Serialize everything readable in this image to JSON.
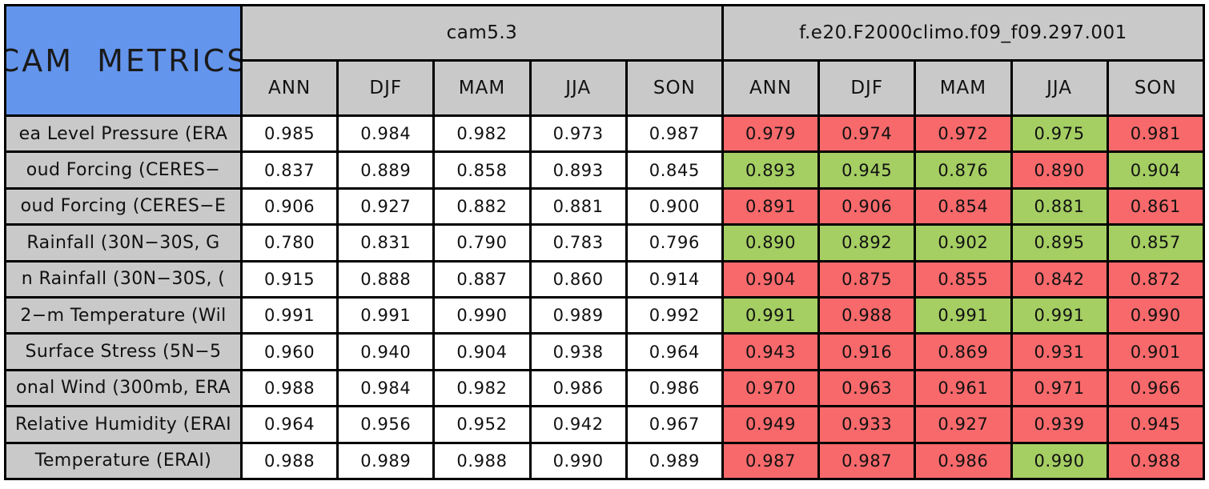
{
  "chart_data": {
    "type": "table",
    "title": "CAM METRICS",
    "header": {
      "model_1": "cam5.3",
      "model_2": "f.e20.F2000climo.f09_f09.297.001",
      "seasons": [
        "ANN",
        "DJF",
        "MAM",
        "JJA",
        "SON"
      ]
    },
    "rows": [
      {
        "label": "ea Level Pressure (ERA",
        "model_1_values": [
          "0.985",
          "0.984",
          "0.982",
          "0.973",
          "0.987"
        ],
        "model_2_values": [
          "0.979",
          "0.974",
          "0.972",
          "0.975",
          "0.981"
        ],
        "model_2_status": [
          "worse",
          "worse",
          "worse",
          "better",
          "worse"
        ]
      },
      {
        "label": "oud Forcing (CERES−",
        "model_1_values": [
          "0.837",
          "0.889",
          "0.858",
          "0.893",
          "0.845"
        ],
        "model_2_values": [
          "0.893",
          "0.945",
          "0.876",
          "0.890",
          "0.904"
        ],
        "model_2_status": [
          "better",
          "better",
          "better",
          "worse",
          "better"
        ]
      },
      {
        "label": "oud Forcing (CERES−E",
        "model_1_values": [
          "0.906",
          "0.927",
          "0.882",
          "0.881",
          "0.900"
        ],
        "model_2_values": [
          "0.891",
          "0.906",
          "0.854",
          "0.881",
          "0.861"
        ],
        "model_2_status": [
          "worse",
          "worse",
          "worse",
          "better",
          "worse"
        ]
      },
      {
        "label": "Rainfall (30N−30S, G",
        "model_1_values": [
          "0.780",
          "0.831",
          "0.790",
          "0.783",
          "0.796"
        ],
        "model_2_values": [
          "0.890",
          "0.892",
          "0.902",
          "0.895",
          "0.857"
        ],
        "model_2_status": [
          "better",
          "better",
          "better",
          "better",
          "better"
        ]
      },
      {
        "label": "n Rainfall (30N−30S, (",
        "model_1_values": [
          "0.915",
          "0.888",
          "0.887",
          "0.860",
          "0.914"
        ],
        "model_2_values": [
          "0.904",
          "0.875",
          "0.855",
          "0.842",
          "0.872"
        ],
        "model_2_status": [
          "worse",
          "worse",
          "worse",
          "worse",
          "worse"
        ]
      },
      {
        "label": "2−m Temperature (Wil",
        "model_1_values": [
          "0.991",
          "0.991",
          "0.990",
          "0.989",
          "0.992"
        ],
        "model_2_values": [
          "0.991",
          "0.988",
          "0.991",
          "0.991",
          "0.990"
        ],
        "model_2_status": [
          "better",
          "worse",
          "better",
          "better",
          "worse"
        ]
      },
      {
        "label": "Surface Stress (5N−5",
        "model_1_values": [
          "0.960",
          "0.940",
          "0.904",
          "0.938",
          "0.964"
        ],
        "model_2_values": [
          "0.943",
          "0.916",
          "0.869",
          "0.931",
          "0.901"
        ],
        "model_2_status": [
          "worse",
          "worse",
          "worse",
          "worse",
          "worse"
        ]
      },
      {
        "label": "onal Wind (300mb, ERA",
        "model_1_values": [
          "0.988",
          "0.984",
          "0.982",
          "0.986",
          "0.986"
        ],
        "model_2_values": [
          "0.970",
          "0.963",
          "0.961",
          "0.971",
          "0.966"
        ],
        "model_2_status": [
          "worse",
          "worse",
          "worse",
          "worse",
          "worse"
        ]
      },
      {
        "label": "Relative Humidity (ERAI",
        "model_1_values": [
          "0.964",
          "0.956",
          "0.952",
          "0.942",
          "0.967"
        ],
        "model_2_values": [
          "0.949",
          "0.933",
          "0.927",
          "0.939",
          "0.945"
        ],
        "model_2_status": [
          "worse",
          "worse",
          "worse",
          "worse",
          "worse"
        ]
      },
      {
        "label": "Temperature (ERAI)",
        "model_1_values": [
          "0.988",
          "0.989",
          "0.988",
          "0.990",
          "0.989"
        ],
        "model_2_values": [
          "0.987",
          "0.987",
          "0.986",
          "0.990",
          "0.988"
        ],
        "model_2_status": [
          "worse",
          "worse",
          "worse",
          "better",
          "worse"
        ]
      }
    ]
  },
  "colors": {
    "better_green": "#A5CE63",
    "worse_red": "#F8696B",
    "header_gray": "#C9C9C9",
    "title_blue": "#6495ED",
    "border_black": "#000000"
  }
}
